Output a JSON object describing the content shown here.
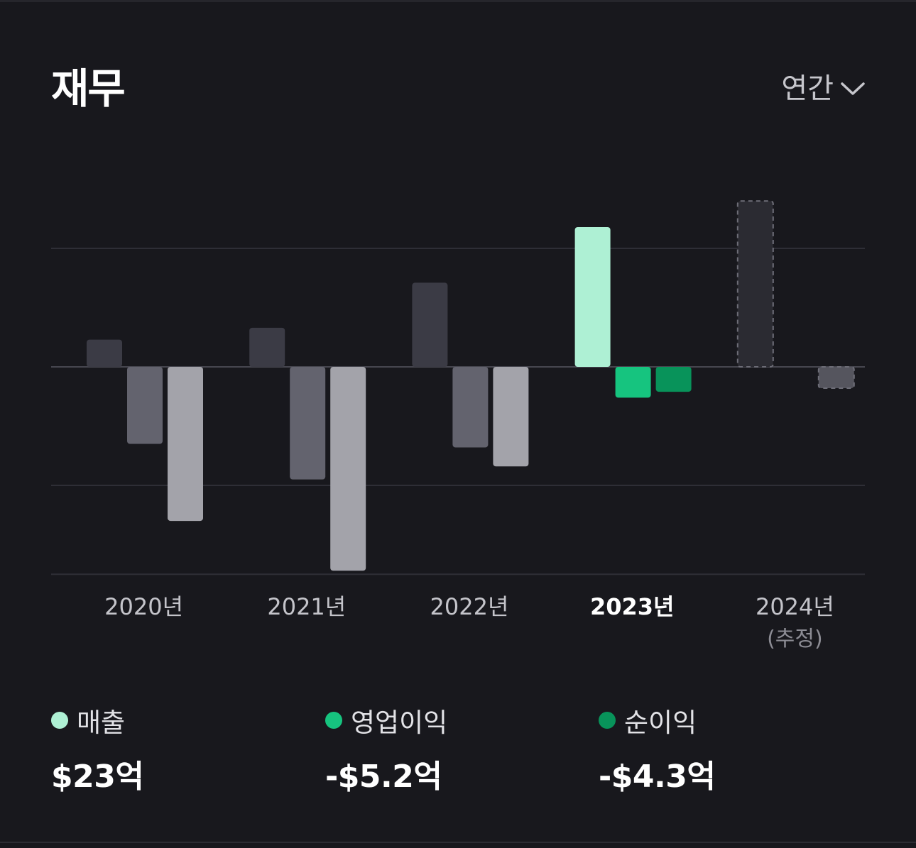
{
  "header": {
    "title": "재무",
    "period_label": "연간"
  },
  "chart_data": {
    "type": "bar",
    "categories": [
      "2020년",
      "2021년",
      "2022년",
      "2023년",
      "2024년"
    ],
    "category_sublabels": [
      "",
      "",
      "",
      "",
      "(추정)"
    ],
    "highlight_category": "2023년",
    "estimated_category": "2024년",
    "ylim": [
      -17,
      14
    ],
    "gridlines": [
      10,
      0,
      -10,
      -17.5
    ],
    "series": [
      {
        "name": "매출",
        "values": [
          2.3,
          3.3,
          7.1,
          11.8,
          14.0
        ]
      },
      {
        "name": "영업이익",
        "values": [
          -6.5,
          -9.5,
          -6.8,
          -2.6,
          null
        ]
      },
      {
        "name": "순이익",
        "values": [
          -13.0,
          -17.2,
          -8.4,
          -2.1,
          -1.8
        ]
      }
    ],
    "colors": {
      "highlight": [
        "#aef0d4",
        "#16c47f",
        "#08935a"
      ],
      "muted": [
        "#3b3b45",
        "#63636e",
        "#a3a3aa"
      ],
      "estimated_fill": "#2b2b32",
      "estimated_dash": "#6e6e78",
      "grid": "#2e2e36",
      "zero_line": "#46464f",
      "tick_normal": "#c4c4ca",
      "tick_highlight": "#ffffff",
      "tick_sub": "#8c8c94"
    }
  },
  "legend": [
    {
      "label": "매출",
      "value": "$23억",
      "color": "#aef0d4"
    },
    {
      "label": "영업이익",
      "value": "-$5.2억",
      "color": "#16c47f"
    },
    {
      "label": "순이익",
      "value": "-$4.3억",
      "color": "#08935a"
    }
  ]
}
